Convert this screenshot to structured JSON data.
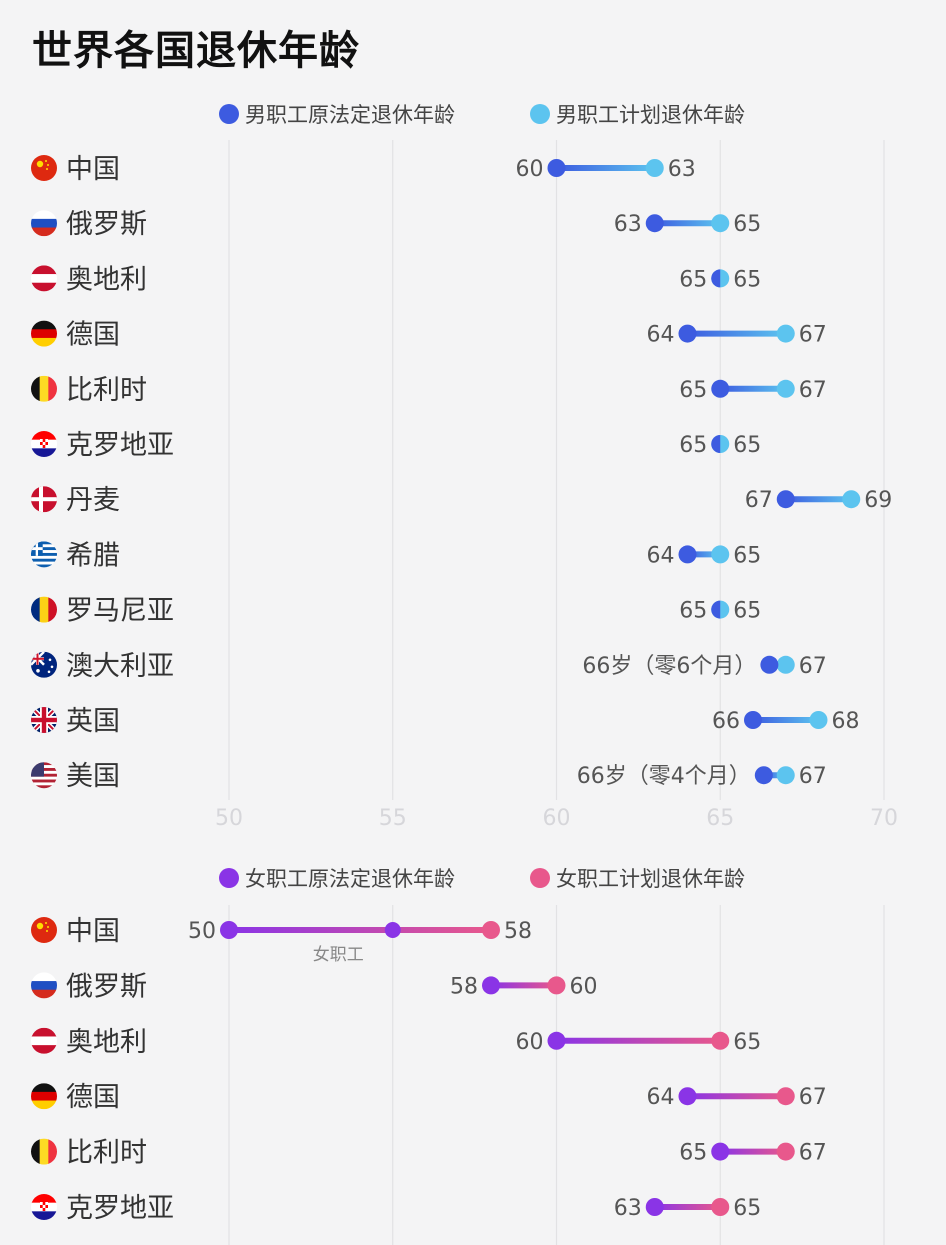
{
  "title": "世界各国退休年龄",
  "colors": {
    "male_original": "#3d5be0",
    "male_planned": "#5cc4ef",
    "female_original": "#8a34e6",
    "female_planned": "#e8588c",
    "grid": "#e2e2e4",
    "tick": "#d6d6da",
    "text": "#555555",
    "country": "#333333"
  },
  "chart_data": [
    {
      "type": "dumbbell",
      "id": "male",
      "legend": [
        "男职工原法定退休年龄",
        "男职工计划退休年龄"
      ],
      "xlim": [
        50,
        70
      ],
      "xticks": [
        "50",
        "55",
        "60",
        "65",
        "70"
      ],
      "rows": [
        {
          "country": "中国",
          "flag": "china-flag-icon",
          "original": 60,
          "planned": 63,
          "original_label": "60",
          "planned_label": "63"
        },
        {
          "country": "俄罗斯",
          "flag": "russia-flag-icon",
          "original": 63,
          "planned": 65,
          "original_label": "63",
          "planned_label": "65"
        },
        {
          "country": "奥地利",
          "flag": "austria-flag-icon",
          "original": 65,
          "planned": 65,
          "original_label": "65",
          "planned_label": "65"
        },
        {
          "country": "德国",
          "flag": "germany-flag-icon",
          "original": 64,
          "planned": 67,
          "original_label": "64",
          "planned_label": "67"
        },
        {
          "country": "比利时",
          "flag": "belgium-flag-icon",
          "original": 65,
          "planned": 67,
          "original_label": "65",
          "planned_label": "67"
        },
        {
          "country": "克罗地亚",
          "flag": "croatia-flag-icon",
          "original": 65,
          "planned": 65,
          "original_label": "65",
          "planned_label": "65"
        },
        {
          "country": "丹麦",
          "flag": "denmark-flag-icon",
          "original": 67,
          "planned": 69,
          "original_label": "67",
          "planned_label": "69"
        },
        {
          "country": "希腊",
          "flag": "greece-flag-icon",
          "original": 64,
          "planned": 65,
          "original_label": "64",
          "planned_label": "65"
        },
        {
          "country": "罗马尼亚",
          "flag": "romania-flag-icon",
          "original": 65,
          "planned": 65,
          "original_label": "65",
          "planned_label": "65"
        },
        {
          "country": "澳大利亚",
          "flag": "australia-flag-icon",
          "original": 66.5,
          "planned": 67,
          "original_label": "66岁（零6个月）",
          "planned_label": "67"
        },
        {
          "country": "英国",
          "flag": "uk-flag-icon",
          "original": 66,
          "planned": 68,
          "original_label": "66",
          "planned_label": "68"
        },
        {
          "country": "美国",
          "flag": "usa-flag-icon",
          "original": 66.33,
          "planned": 67,
          "original_label": "66岁（零4个月）",
          "planned_label": "67"
        }
      ]
    },
    {
      "type": "dumbbell",
      "id": "female",
      "legend": [
        "女职工原法定退休年龄",
        "女职工计划退休年龄"
      ],
      "xlim": [
        50,
        70
      ],
      "annotation": {
        "text": "女职工",
        "value": 55
      },
      "rows": [
        {
          "country": "中国",
          "flag": "china-flag-icon",
          "original": 50,
          "planned": 58,
          "mid": 55,
          "original_label": "50",
          "planned_label": "58"
        },
        {
          "country": "俄罗斯",
          "flag": "russia-flag-icon",
          "original": 58,
          "planned": 60,
          "original_label": "58",
          "planned_label": "60"
        },
        {
          "country": "奥地利",
          "flag": "austria-flag-icon",
          "original": 60,
          "planned": 65,
          "original_label": "60",
          "planned_label": "65"
        },
        {
          "country": "德国",
          "flag": "germany-flag-icon",
          "original": 64,
          "planned": 67,
          "original_label": "64",
          "planned_label": "67"
        },
        {
          "country": "比利时",
          "flag": "belgium-flag-icon",
          "original": 65,
          "planned": 67,
          "original_label": "65",
          "planned_label": "67"
        },
        {
          "country": "克罗地亚",
          "flag": "croatia-flag-icon",
          "original": 63,
          "planned": 65,
          "original_label": "63",
          "planned_label": "65"
        }
      ]
    }
  ]
}
